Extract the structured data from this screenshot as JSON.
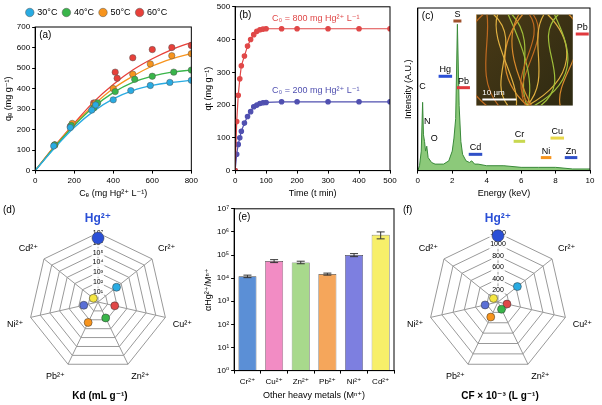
{
  "chart_data": [
    {
      "type": "scatter",
      "title": "(a)",
      "xlabel": "Cₑ (mg Hg²⁺ L⁻¹)",
      "ylabel": "qₑ (mg g⁻¹)",
      "xlim": [
        0,
        800
      ],
      "xticks": [
        0,
        200,
        400,
        600,
        800
      ],
      "ylim": [
        0,
        700
      ],
      "yticks": [
        0,
        100,
        200,
        300,
        400,
        500,
        600,
        700
      ],
      "grid": false,
      "legend": "top",
      "marker": "circle",
      "series": [
        {
          "name": "30°C",
          "color": "#29abe2",
          "x": [
            95,
            180,
            290,
            310,
            400,
            490,
            590,
            690,
            800
          ],
          "values": [
            120,
            210,
            295,
            320,
            345,
            390,
            415,
            430,
            440
          ],
          "fit": {
            "x": [
              0,
              100,
              200,
              300,
              400,
              500,
              600,
              700,
              800
            ],
            "values": [
              0,
              110,
              210,
              290,
              350,
              390,
              415,
              430,
              440
            ]
          }
        },
        {
          "name": "40°C",
          "color": "#39b54a",
          "x": [
            100,
            185,
            300,
            320,
            410,
            510,
            600,
            710,
            800
          ],
          "values": [
            125,
            220,
            305,
            330,
            385,
            445,
            460,
            480,
            490
          ],
          "fit": {
            "x": [
              0,
              100,
              200,
              300,
              400,
              500,
              600,
              700,
              800
            ],
            "values": [
              0,
              115,
              220,
              310,
              380,
              430,
              460,
              480,
              490
            ]
          }
        },
        {
          "name": "50°C",
          "color": "#f7941d",
          "x": [
            100,
            190,
            300,
            310,
            400,
            500,
            590,
            700,
            800
          ],
          "values": [
            125,
            230,
            320,
            330,
            400,
            470,
            520,
            560,
            570
          ],
          "fit": {
            "x": [
              0,
              100,
              200,
              300,
              400,
              500,
              600,
              700,
              800
            ],
            "values": [
              0,
              118,
              225,
              320,
              400,
              460,
              510,
              545,
              570
            ]
          }
        },
        {
          "name": "60°C",
          "color": "#e8403a",
          "x": [
            100,
            180,
            300,
            420,
            410,
            500,
            600,
            700,
            800
          ],
          "values": [
            125,
            215,
            330,
            450,
            480,
            550,
            590,
            600,
            610
          ],
          "fit": {
            "x": [
              0,
              100,
              200,
              300,
              400,
              500,
              600,
              700,
              800
            ],
            "values": [
              0,
              120,
              230,
              335,
              420,
              490,
              545,
              590,
              625
            ]
          }
        }
      ]
    },
    {
      "type": "line",
      "title": "(b)",
      "xlabel": "Time (t min)",
      "ylabel": "qt (mg g⁻¹)",
      "xlim": [
        0,
        500
      ],
      "xticks": [
        0,
        100,
        200,
        300,
        400,
        500
      ],
      "ylim": [
        0,
        500
      ],
      "yticks": [
        0,
        100,
        200,
        300,
        400,
        500
      ],
      "grid": false,
      "marker": "circle",
      "x": [
        0,
        5,
        10,
        15,
        20,
        30,
        40,
        50,
        60,
        70,
        80,
        90,
        100,
        150,
        200,
        300,
        400,
        500
      ],
      "series": [
        {
          "color": "#e04848",
          "values": [
            0,
            150,
            230,
            280,
            320,
            350,
            380,
            400,
            415,
            425,
            430,
            432,
            433,
            433,
            433,
            433,
            433,
            433
          ]
        },
        {
          "color": "#5050b0",
          "values": [
            0,
            50,
            80,
            100,
            120,
            145,
            165,
            180,
            195,
            200,
            205,
            207,
            208,
            210,
            210,
            210,
            210,
            210
          ]
        }
      ],
      "annotations": [
        {
          "text": "C₀ = 800 mg Hg²⁺ L⁻¹",
          "x": 260,
          "y": 465,
          "color": "#e04848"
        },
        {
          "text": "C₀ = 200 mg Hg²⁺ L⁻¹",
          "x": 260,
          "y": 245,
          "color": "#5050b0"
        }
      ]
    },
    {
      "type": "area",
      "title": "(c)",
      "xlabel": "Energy (keV)",
      "ylabel": "Intensity (A.U.)",
      "xlim": [
        0,
        10
      ],
      "xticks": [
        0,
        2,
        4,
        6,
        8,
        10
      ],
      "ylim": [
        0,
        100
      ],
      "tick_labels": "x",
      "grid": false,
      "color": "#8cc97a",
      "x": [
        0,
        0.1,
        0.2,
        0.28,
        0.33,
        0.39,
        0.45,
        0.52,
        0.6,
        0.8,
        1.0,
        1.5,
        1.8,
        2.0,
        2.1,
        2.2,
        2.3,
        2.4,
        2.5,
        2.6,
        2.8,
        3.0,
        3.13,
        3.3,
        3.5,
        4.0,
        5.0,
        6.0,
        7.0,
        8.0,
        9.0,
        10.0
      ],
      "values": [
        0,
        3,
        12,
        42,
        22,
        18,
        12,
        15,
        8,
        5,
        4,
        4,
        6,
        12,
        20,
        32,
        90,
        40,
        18,
        10,
        6,
        5,
        6,
        4,
        4,
        3,
        3,
        2,
        2,
        2,
        1,
        1
      ],
      "annotations": [
        {
          "text": "C",
          "x": 0.28,
          "y": 52
        },
        {
          "text": "N",
          "x": 0.55,
          "y": 30
        },
        {
          "text": "O",
          "x": 0.95,
          "y": 20
        },
        {
          "text": "Hg",
          "x": 1.6,
          "y": 62,
          "color": "#2a4fd6"
        },
        {
          "text": "S",
          "x": 2.3,
          "y": 96,
          "color": "#a0522d"
        },
        {
          "text": "Pb",
          "x": 2.65,
          "y": 55,
          "color": "#e0393e"
        },
        {
          "text": "Cd",
          "x": 3.35,
          "y": 14,
          "color": "#3050c8"
        },
        {
          "text": "Cr",
          "x": 5.9,
          "y": 22,
          "color": "#c8d850"
        },
        {
          "text": "Ni",
          "x": 7.45,
          "y": 12,
          "color": "#f7941d"
        },
        {
          "text": "Cu",
          "x": 8.1,
          "y": 24,
          "color": "#e8d84a"
        },
        {
          "text": "Zn",
          "x": 8.9,
          "y": 12,
          "color": "#3050c8"
        },
        {
          "text": "Pb",
          "x": 9.55,
          "y": 88,
          "color": "#e0393e"
        }
      ],
      "inset": {
        "scale_bar": "10 µm"
      }
    },
    {
      "type": "radar",
      "title": "(d)",
      "xlabel": "Kd (mL g⁻¹)",
      "log": true,
      "grid": true,
      "marker": "circle",
      "categories": [
        "Hg²⁺",
        "Cr²⁺",
        "Cu²⁺",
        "Zn²⁺",
        "Pb²⁺",
        "Ni²⁺",
        "Cd²⁺"
      ],
      "values": [
        3000000,
        250,
        55,
        62,
        200,
        30,
        4
      ],
      "colors": [
        "#2a4fd6",
        "#29abe2",
        "#e04848",
        "#39b54a",
        "#f7941d",
        "#5a6fd6",
        "#f5e642"
      ],
      "ylim": [
        1,
        10000000
      ],
      "yticks": [
        {
          "value": 10,
          "label": "10¹"
        },
        {
          "value": 100,
          "label": "10²"
        },
        {
          "value": 1000,
          "label": "10³"
        },
        {
          "value": 10000,
          "label": "10⁴"
        },
        {
          "value": 100000,
          "label": "10⁵"
        },
        {
          "value": 1000000,
          "label": "10⁶"
        },
        {
          "value": 10000000,
          "label": "10⁷"
        }
      ]
    },
    {
      "type": "bar",
      "title": "(e)",
      "xlabel": "Other heavy metals (Mⁿ⁺)",
      "ylabel": "αHg²⁺/Mⁿ⁺",
      "log": "y",
      "grid": false,
      "categories": [
        "Cr²⁺",
        "Cu²⁺",
        "Zn²⁺",
        "Pb²⁺",
        "Ni²⁺",
        "Cd²⁺"
      ],
      "values": [
        12000,
        55000,
        48000,
        15000,
        100000,
        750000
      ],
      "errors": [
        1500,
        8000,
        6000,
        1500,
        15000,
        250000
      ],
      "colors": [
        "#5b8fd6",
        "#f28cc4",
        "#a8d98c",
        "#f5a65b",
        "#7d7fe0",
        "#f7ef6a"
      ],
      "ylim": [
        1,
        10000000
      ],
      "yticks": [
        {
          "value": 1,
          "label": "10⁰"
        },
        {
          "value": 10,
          "label": "10¹"
        },
        {
          "value": 100,
          "label": "10²"
        },
        {
          "value": 1000,
          "label": "10³"
        },
        {
          "value": 10000,
          "label": "10⁴"
        },
        {
          "value": 100000,
          "label": "10⁵"
        },
        {
          "value": 1000000,
          "label": "10⁶"
        },
        {
          "value": 10000000,
          "label": "10⁷"
        }
      ]
    },
    {
      "type": "radar",
      "title": "(f)",
      "xlabel": "CF × 10⁻³ (L g⁻¹)",
      "grid": true,
      "marker": "circle",
      "categories": [
        "Hg²⁺",
        "Cr²⁺",
        "Cu²⁺",
        "Zn²⁺",
        "Pb²⁺",
        "Ni²⁺",
        "Cd²⁺"
      ],
      "values": [
        1150,
        430,
        160,
        140,
        290,
        230,
        100
      ],
      "colors": [
        "#2a4fd6",
        "#29abe2",
        "#e04848",
        "#39b54a",
        "#f7941d",
        "#5a6fd6",
        "#f5e642"
      ],
      "ylim": [
        0,
        1200
      ],
      "yticks": [
        200,
        400,
        600,
        800,
        1000,
        1200
      ]
    }
  ]
}
